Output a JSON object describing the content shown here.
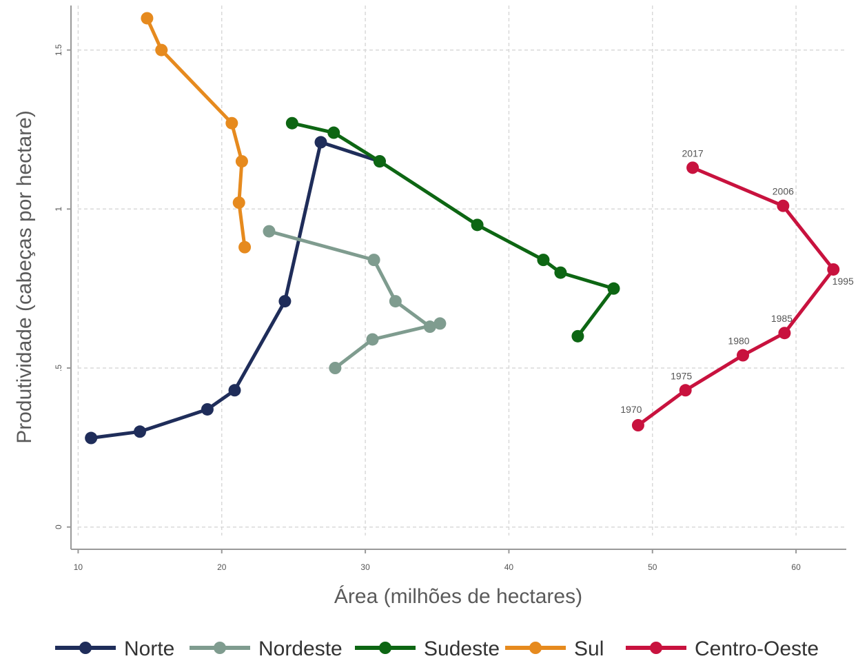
{
  "chart_data": {
    "type": "line",
    "title": "",
    "xlabel": "Área (milhões de hectares)",
    "ylabel": "Produtividade (cabeças por hectare)",
    "xlim": [
      9.5,
      63.5
    ],
    "ylim": [
      -0.07,
      1.64
    ],
    "xticks": [
      10,
      20,
      30,
      40,
      50,
      60
    ],
    "yticks": [
      0,
      0.5,
      1,
      1.5
    ],
    "xtick_labels": [
      "10",
      "20",
      "30",
      "40",
      "50",
      "60"
    ],
    "ytick_labels": [
      "0",
      ".5",
      "1",
      "1.5"
    ],
    "grid": true,
    "legend_position": "bottom",
    "series": [
      {
        "name": "Norte",
        "color": "#1f2d5a",
        "points": [
          [
            10.9,
            0.28
          ],
          [
            14.3,
            0.3
          ],
          [
            19.0,
            0.37
          ],
          [
            20.9,
            0.43
          ],
          [
            24.4,
            0.71
          ],
          [
            26.9,
            1.21
          ],
          [
            31.0,
            1.15
          ]
        ]
      },
      {
        "name": "Nordeste",
        "color": "#7f9c8f",
        "points": [
          [
            23.3,
            0.93
          ],
          [
            30.6,
            0.84
          ],
          [
            32.1,
            0.71
          ],
          [
            34.5,
            0.63
          ],
          [
            35.2,
            0.64
          ],
          [
            30.5,
            0.59
          ],
          [
            27.9,
            0.5
          ]
        ]
      },
      {
        "name": "Sudeste",
        "color": "#0d6613",
        "points": [
          [
            24.9,
            1.27
          ],
          [
            27.8,
            1.24
          ],
          [
            31.0,
            1.15
          ],
          [
            37.8,
            0.95
          ],
          [
            42.4,
            0.84
          ],
          [
            43.6,
            0.8
          ],
          [
            47.3,
            0.75
          ],
          [
            44.8,
            0.6
          ]
        ]
      },
      {
        "name": "Sul",
        "color": "#e68a1e",
        "points": [
          [
            14.8,
            1.6
          ],
          [
            15.8,
            1.5
          ],
          [
            20.7,
            1.27
          ],
          [
            21.4,
            1.15
          ],
          [
            21.2,
            1.02
          ],
          [
            21.6,
            0.88
          ]
        ]
      },
      {
        "name": "Centro-Oeste",
        "color": "#c8123e",
        "points": [
          [
            49.0,
            0.32
          ],
          [
            52.3,
            0.43
          ],
          [
            56.3,
            0.54
          ],
          [
            59.2,
            0.61
          ],
          [
            62.6,
            0.81
          ],
          [
            59.1,
            1.01
          ],
          [
            52.8,
            1.13
          ]
        ],
        "point_labels": [
          "1970",
          "1975",
          "1980",
          "1985",
          "1995",
          "2006",
          "2017"
        ]
      }
    ]
  }
}
